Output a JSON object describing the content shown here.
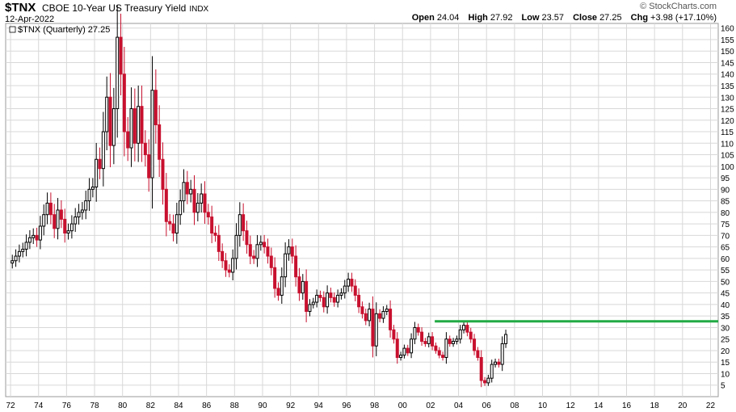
{
  "header": {
    "symbol": "$TNX",
    "name": "CBOE 10-Year US Treasury Yield",
    "exchange": "INDX",
    "date": "12-Apr-2022",
    "brand": "© StockCharts.com",
    "open_label": "Open",
    "open": "24.04",
    "high_label": "High",
    "high": "27.92",
    "low_label": "Low",
    "low": "23.57",
    "close_label": "Close",
    "close": "27.25",
    "chg_label": "Chg",
    "chg": "+3.98 (+17.10%)"
  },
  "legend": "$TNX (Quarterly) 27.25",
  "colors": {
    "up": "#000000",
    "down": "#c8102e",
    "support": "#22aa44",
    "grid": "#d8d8d8"
  },
  "chart_data": {
    "type": "candlestick",
    "frequency": "quarterly",
    "x_tick_labels": [
      "72",
      "74",
      "76",
      "78",
      "80",
      "82",
      "84",
      "86",
      "88",
      "90",
      "92",
      "94",
      "96",
      "98",
      "00",
      "02",
      "04",
      "06",
      "08",
      "10",
      "12",
      "14",
      "16",
      "18",
      "20",
      "22"
    ],
    "x_tick_years": [
      1972,
      1974,
      1976,
      1978,
      1980,
      1982,
      1984,
      1986,
      1988,
      1990,
      1992,
      1994,
      1996,
      1998,
      2000,
      2002,
      2004,
      2006,
      2008,
      2010,
      2012,
      2014,
      2016,
      2018,
      2020,
      2022
    ],
    "ylim": [
      0,
      162
    ],
    "y_ticks": [
      5,
      10,
      15,
      20,
      25,
      30,
      35,
      40,
      45,
      50,
      55,
      60,
      65,
      70,
      75,
      80,
      85,
      90,
      95,
      100,
      105,
      110,
      115,
      120,
      125,
      130,
      135,
      140,
      145,
      150,
      155,
      160
    ],
    "xlim": [
      1971.65,
      2022.55
    ],
    "grid": true,
    "support_line": {
      "y": 32.7,
      "from_year": 2002.3,
      "to_year": 2022.55
    },
    "closes": [
      59,
      61,
      63,
      64,
      67,
      69,
      70,
      68,
      74,
      79,
      84,
      79,
      73,
      81,
      77,
      71,
      72,
      75,
      78,
      80,
      81,
      85,
      90,
      91,
      103,
      99,
      115,
      130,
      109,
      125,
      156,
      140,
      115,
      108,
      125,
      110,
      126,
      110,
      105,
      95,
      133,
      118,
      103,
      90,
      76,
      75,
      71,
      79,
      85,
      93,
      88,
      90,
      80,
      84,
      88,
      80,
      78,
      71,
      70,
      63,
      59,
      55,
      54,
      60,
      70,
      79,
      72,
      66,
      61,
      60,
      66,
      67,
      65,
      61,
      56,
      47,
      44,
      52,
      62,
      65,
      61,
      52,
      45,
      50,
      37,
      40,
      41,
      44,
      43,
      39,
      45,
      43,
      41,
      44,
      45,
      48,
      51,
      48,
      44,
      39,
      36,
      33,
      38,
      22,
      36,
      34,
      37,
      38,
      29,
      25,
      17,
      18,
      21,
      19,
      25,
      30,
      28,
      24,
      23,
      26,
      22,
      20,
      18,
      17,
      25,
      23,
      24,
      25,
      29,
      31,
      28,
      25,
      20,
      17,
      7,
      6,
      8,
      14,
      15,
      14,
      23,
      27
    ]
  }
}
